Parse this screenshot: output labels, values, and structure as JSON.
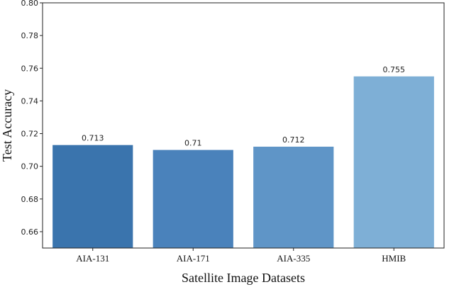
{
  "chart_data": {
    "type": "bar",
    "title": "",
    "xlabel": "Satellite Image Datasets",
    "ylabel": "Test Accuracy",
    "categories": [
      "AIA-131",
      "AIA-171",
      "AIA-335",
      "HMIB"
    ],
    "values": [
      0.713,
      0.71,
      0.712,
      0.755
    ],
    "value_labels": [
      "0.713",
      "0.71",
      "0.712",
      "0.755"
    ],
    "ylim": [
      0.65,
      0.8
    ],
    "yticks": [
      "0.66",
      "0.68",
      "0.70",
      "0.72",
      "0.74",
      "0.76",
      "0.78",
      "0.80"
    ],
    "bar_colors": [
      "#3a74ad",
      "#4a82bb",
      "#5f95c7",
      "#7eafd6"
    ],
    "grid": false,
    "legend": false
  }
}
